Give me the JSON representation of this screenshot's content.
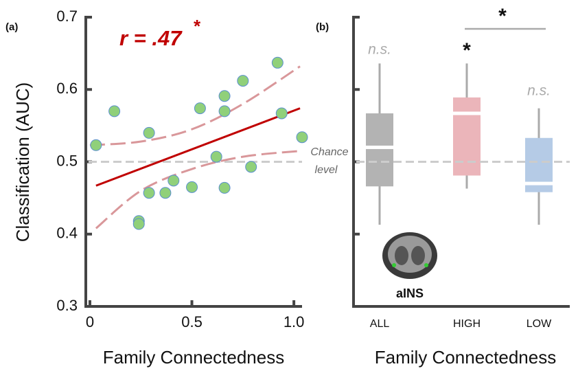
{
  "chart_data": [
    {
      "type": "scatter",
      "panel_label": "(a)",
      "x_label": "Family Connectedness",
      "y_label": "Classification (AUC)",
      "annotation": "r = .47",
      "annotation_mark": "*",
      "xlim": [
        -0.02,
        1.04
      ],
      "ylim": [
        0.3,
        0.7
      ],
      "xticks": [
        0,
        0.5,
        {
          "value": 1,
          "label": "1.0"
        }
      ],
      "yticks": [
        0.3,
        0.4,
        0.5,
        0.6,
        0.7
      ],
      "points": {
        "color": "#90d07a",
        "x": [
          0.03,
          0.12,
          0.29,
          0.29,
          0.24,
          0.24,
          0.37,
          0.41,
          0.5,
          0.54,
          0.62,
          0.66,
          0.66,
          0.66,
          0.75,
          0.79,
          0.92,
          0.94,
          1.04
        ],
        "y": [
          0.523,
          0.57,
          0.54,
          0.457,
          0.418,
          0.414,
          0.457,
          0.474,
          0.465,
          0.574,
          0.507,
          0.591,
          0.57,
          0.464,
          0.612,
          0.493,
          0.637,
          0.567,
          0.534
        ]
      },
      "fit": {
        "color": "#c00000",
        "x": [
          0.03,
          1.03
        ],
        "y": [
          0.467,
          0.574
        ]
      },
      "ci_upper": {
        "color": "#d9979a",
        "x": [
          0.0,
          0.25,
          0.5,
          0.75,
          1.03
        ],
        "y": [
          0.523,
          0.528,
          0.545,
          0.58,
          0.632
        ]
      },
      "ci_lower": {
        "color": "#d9979a",
        "x": [
          0.03,
          0.25,
          0.5,
          0.75,
          1.03
        ],
        "y": [
          0.408,
          0.46,
          0.49,
          0.507,
          0.515
        ]
      },
      "chance": 0.5,
      "chance_label": [
        "Chance",
        "level"
      ]
    },
    {
      "type": "box",
      "panel_label": "(b)",
      "x_label": "Family Connectedness",
      "ylim": [
        0.3,
        0.7
      ],
      "yticks": [
        0.3,
        0.4,
        0.5,
        0.6,
        0.7
      ],
      "ytick_labels": false,
      "categories": [
        "ALL",
        "HIGH",
        "LOW"
      ],
      "colors": [
        "#b3b3b3",
        "#ebb5ba",
        "#b5cbe6"
      ],
      "whisker_low": [
        0.413,
        0.463,
        0.413
      ],
      "q1": [
        0.466,
        0.481,
        0.458
      ],
      "median": [
        0.52,
        0.567,
        0.47
      ],
      "q3": [
        0.567,
        0.589,
        0.533
      ],
      "whisker_high": [
        0.636,
        0.636,
        0.574
      ],
      "annotations": [
        "n.s.",
        "*",
        "n.s."
      ],
      "comparison_label": "*",
      "chance": 0.5,
      "region_label": "aINS"
    }
  ]
}
